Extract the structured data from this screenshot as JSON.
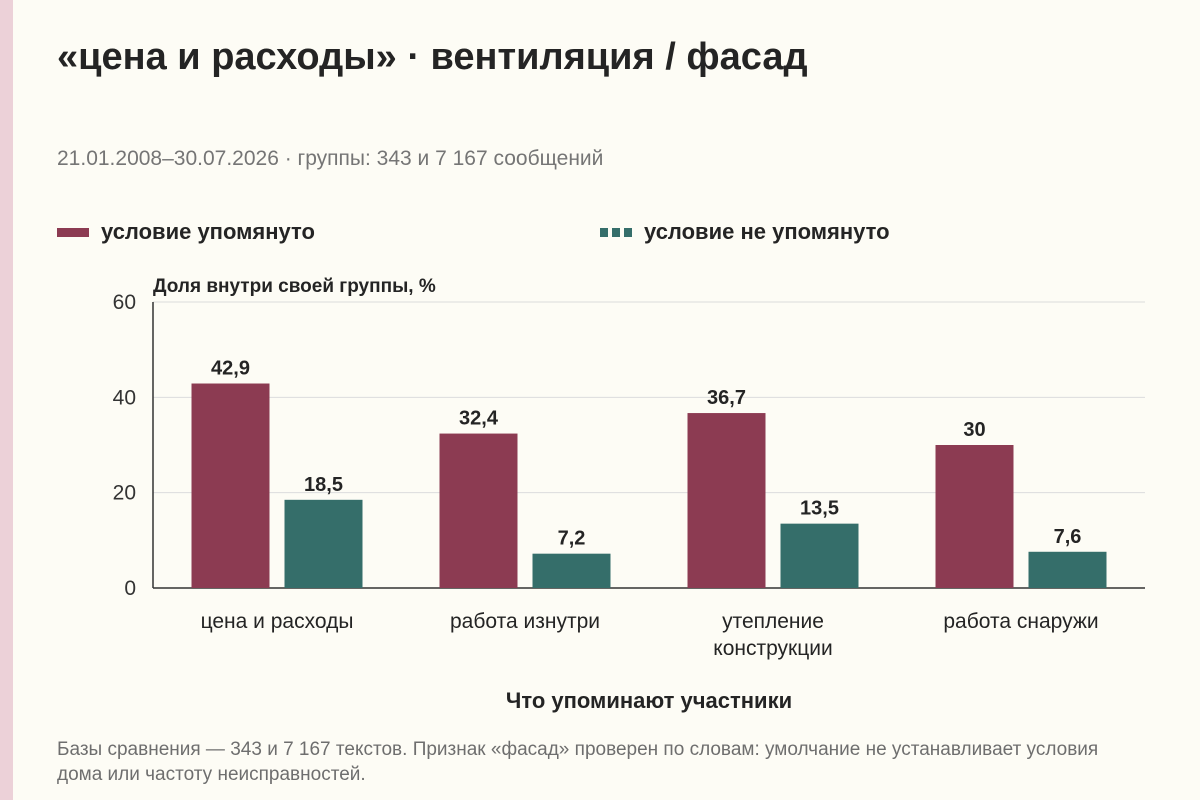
{
  "title": "«цена и расходы» · вентиляция / фасад",
  "subtitle": "21.01.2008–30.07.2026 · группы: 343 и 7 167 сообщений",
  "note": "Базы сравнения — 343 и 7 167 текстов. Признак «фасад» проверен по словам: умолчание не устанавливает условия дома или частоту неисправностей.",
  "colors": {
    "mentioned": "#8c3b52",
    "not_mentioned": "#356e6a",
    "grid": "#dcdcdc",
    "axis": "#333333"
  },
  "chart_data": {
    "type": "bar",
    "categories": [
      [
        "цена и расходы"
      ],
      [
        "работа изнутри"
      ],
      [
        "утепление",
        "конструкции"
      ],
      [
        "работа снаружи"
      ]
    ],
    "series": [
      {
        "name": "условие упомянуто",
        "values": [
          42.9,
          32.4,
          36.7,
          30
        ],
        "labels": [
          "42,9",
          "32,4",
          "36,7",
          "30"
        ]
      },
      {
        "name": "условие не упомянуто",
        "values": [
          18.5,
          7.2,
          13.5,
          7.6
        ],
        "labels": [
          "18,5",
          "7,2",
          "13,5",
          "7,6"
        ]
      }
    ],
    "ylabel": "Доля внутри своей группы, %",
    "xlabel": "Что упоминают участники",
    "ylim": [
      0,
      60
    ],
    "yticks": [
      0,
      20,
      40,
      60
    ],
    "grid": true,
    "legend": "top-left"
  }
}
